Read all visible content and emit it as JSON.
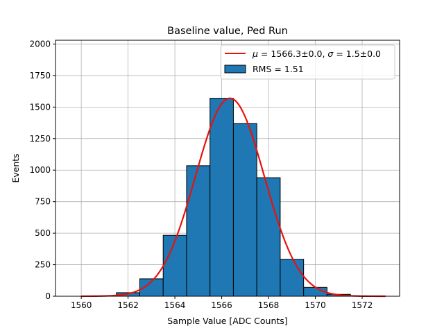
{
  "chart_data": {
    "type": "bar",
    "title": "Baseline value, Ped Run",
    "xlabel": "Sample Value [ADC Counts]",
    "ylabel": "Events",
    "xlim": [
      1558.9,
      1573.6
    ],
    "ylim": [
      0,
      2030
    ],
    "grid": true,
    "legend_position": "top-right",
    "xticks": [
      1560,
      1562,
      1564,
      1566,
      1568,
      1570,
      1572
    ],
    "yticks": [
      0,
      250,
      500,
      750,
      1000,
      1250,
      1500,
      1750,
      2000
    ],
    "histogram": {
      "name": "RMS = 1.51",
      "bin_edges": [
        1561.5,
        1562.5,
        1563.5,
        1564.5,
        1565.5,
        1566.5,
        1567.5,
        1568.5,
        1569.5,
        1570.5,
        1571.5
      ],
      "counts": [
        28,
        138,
        483,
        1035,
        1570,
        1370,
        940,
        293,
        70,
        15
      ],
      "color": "#1f77b4",
      "edgecolor": "#000000"
    },
    "fit": {
      "name": "μ = 1566.3±0.0, σ = 1.5±0.0",
      "label_mu": "μ",
      "label_mu_value": " = 1566.3±0.0, ",
      "label_sigma": "σ",
      "label_sigma_value": " = 1.5±0.0",
      "type": "gaussian",
      "mean": 1566.35,
      "sigma": 1.47,
      "amplitude": 1570,
      "x_range": [
        1560,
        1573
      ],
      "color": "#e8120c"
    }
  }
}
